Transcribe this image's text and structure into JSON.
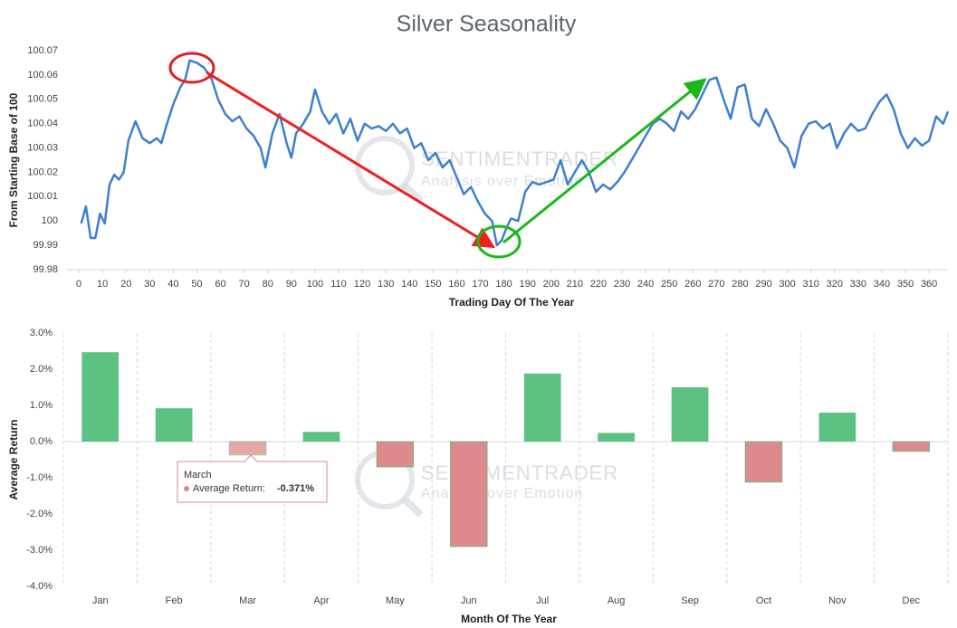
{
  "chart_data": [
    {
      "type": "line",
      "title": "Silver Seasonality",
      "x_label": "Trading Day Of The Year",
      "y_label": "From Starting Base of 100",
      "watermark": "SENTIMENTRADER",
      "watermark_subtitle": "Analysis over Emotion",
      "x": [
        1,
        3,
        5,
        7,
        9,
        11,
        13,
        15,
        17,
        19,
        21,
        24,
        27,
        30,
        33,
        35,
        37,
        40,
        43,
        45,
        47,
        50,
        53,
        56,
        59,
        62,
        65,
        68,
        71,
        74,
        77,
        79,
        82,
        85,
        88,
        90,
        92,
        95,
        98,
        100,
        103,
        106,
        109,
        112,
        115,
        118,
        121,
        124,
        127,
        130,
        133,
        136,
        139,
        142,
        145,
        148,
        151,
        154,
        157,
        160,
        163,
        166,
        169,
        172,
        175,
        177,
        179,
        181,
        183,
        186,
        189,
        192,
        195,
        198,
        201,
        204,
        207,
        210,
        213,
        216,
        219,
        222,
        225,
        228,
        231,
        234,
        237,
        240,
        243,
        246,
        249,
        252,
        255,
        258,
        261,
        264,
        267,
        270,
        273,
        276,
        279,
        282,
        285,
        288,
        291,
        294,
        297,
        300,
        303,
        306,
        309,
        312,
        315,
        318,
        321,
        324,
        327,
        330,
        333,
        336,
        339,
        342,
        345,
        348,
        351,
        354,
        357,
        360,
        363,
        366,
        368
      ],
      "series": [
        {
          "name": "Silver",
          "color": "#3f7fd0",
          "values": [
            99.999,
            100.006,
            99.993,
            99.993,
            100.003,
            99.999,
            100.015,
            100.019,
            100.017,
            100.02,
            100.033,
            100.041,
            100.034,
            100.032,
            100.034,
            100.032,
            100.039,
            100.048,
            100.055,
            100.058,
            100.066,
            100.065,
            100.063,
            100.059,
            100.05,
            100.044,
            100.041,
            100.043,
            100.038,
            100.035,
            100.03,
            100.022,
            100.036,
            100.044,
            100.032,
            100.026,
            100.036,
            100.04,
            100.045,
            100.054,
            100.045,
            100.04,
            100.044,
            100.036,
            100.042,
            100.033,
            100.04,
            100.038,
            100.039,
            100.037,
            100.04,
            100.036,
            100.038,
            100.03,
            100.032,
            100.025,
            100.028,
            100.022,
            100.025,
            100.018,
            100.011,
            100.014,
            100.008,
            100.003,
            100,
            99.99,
            99.992,
            99.997,
            100.001,
            100,
            100.012,
            100.016,
            100.015,
            100.016,
            100.017,
            100.025,
            100.015,
            100.02,
            100.025,
            100.02,
            100.012,
            100.015,
            100.013,
            100.016,
            100.02,
            100.025,
            100.03,
            100.035,
            100.04,
            100.042,
            100.04,
            100.037,
            100.045,
            100.042,
            100.046,
            100.052,
            100.058,
            100.059,
            100.05,
            100.042,
            100.055,
            100.056,
            100.042,
            100.039,
            100.046,
            100.04,
            100.033,
            100.03,
            100.022,
            100.035,
            100.04,
            100.041,
            100.038,
            100.04,
            100.03,
            100.036,
            100.04,
            100.037,
            100.038,
            100.044,
            100.049,
            100.052,
            100.046,
            100.036,
            100.03,
            100.034,
            100.031,
            100.033,
            100.043,
            100.04,
            100.045
          ]
        }
      ],
      "xlim": [
        -5,
        368
      ],
      "xticks": [
        0,
        10,
        20,
        30,
        40,
        50,
        60,
        70,
        80,
        90,
        100,
        110,
        120,
        130,
        140,
        150,
        160,
        170,
        180,
        190,
        200,
        210,
        220,
        230,
        240,
        250,
        260,
        270,
        280,
        290,
        300,
        310,
        320,
        330,
        340,
        350,
        360
      ],
      "ylim": [
        99.98,
        100.07
      ],
      "yticks": [
        99.98,
        99.99,
        100,
        100.01,
        100.02,
        100.03,
        100.04,
        100.05,
        100.06,
        100.07
      ],
      "grid": false
    },
    {
      "type": "bar",
      "x_label": "Month Of The Year",
      "y_label": "Average Return",
      "watermark": "SENTIMENTRADER",
      "watermark_subtitle": "Analysis over Emotion",
      "categories": [
        "Jan",
        "Feb",
        "Mar",
        "Apr",
        "May",
        "Jun",
        "Jul",
        "Aug",
        "Sep",
        "Oct",
        "Nov",
        "Dec"
      ],
      "values": [
        2.47,
        0.92,
        -0.371,
        0.27,
        -0.7,
        -2.9,
        1.88,
        0.24,
        1.5,
        -1.12,
        0.8,
        -0.27
      ],
      "positive_color": "#5cc281",
      "negative_color": "#de8a8c",
      "ylim": [
        -4,
        3
      ],
      "yticks": [
        {
          "value": -4,
          "label": "-4.0%"
        },
        {
          "value": -3,
          "label": "-3.0%"
        },
        {
          "value": -2,
          "label": "-2.0%"
        },
        {
          "value": -1,
          "label": "-1.0%"
        },
        {
          "value": 0,
          "label": "0.0%"
        },
        {
          "value": 1,
          "label": "1.0%"
        },
        {
          "value": 2,
          "label": "2.0%"
        },
        {
          "value": 3,
          "label": "3.0%"
        }
      ],
      "grid": true,
      "tooltip": {
        "title": "March",
        "label": "Average Return:",
        "value": "-0.371%"
      }
    }
  ]
}
